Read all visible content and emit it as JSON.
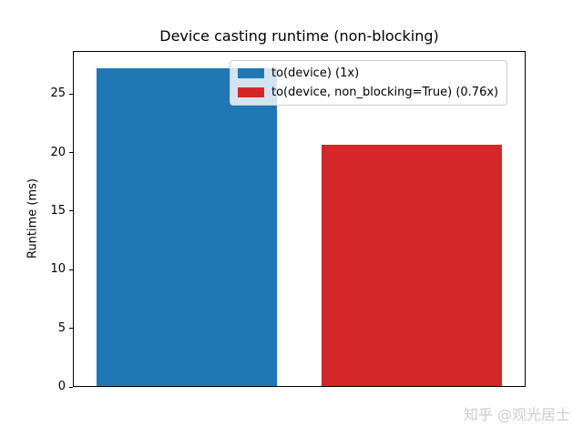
{
  "chart_data": {
    "type": "bar",
    "title": "Device casting runtime (non-blocking)",
    "xlabel": "",
    "ylabel": "Runtime (ms)",
    "ylim": [
      0,
      28.67
    ],
    "yticks": [
      0,
      5,
      10,
      15,
      20,
      25
    ],
    "grid": false,
    "legend_position": "upper center-right, inside plot",
    "bars": [
      {
        "legend_label": "to(device) (1x)",
        "value": 27.3,
        "color": "#1f77b4"
      },
      {
        "legend_label": "to(device, non_blocking=True) (0.76x)",
        "value": 20.7,
        "color": "#d62728"
      }
    ]
  },
  "watermark": {
    "text": "知乎 @观光居士"
  }
}
